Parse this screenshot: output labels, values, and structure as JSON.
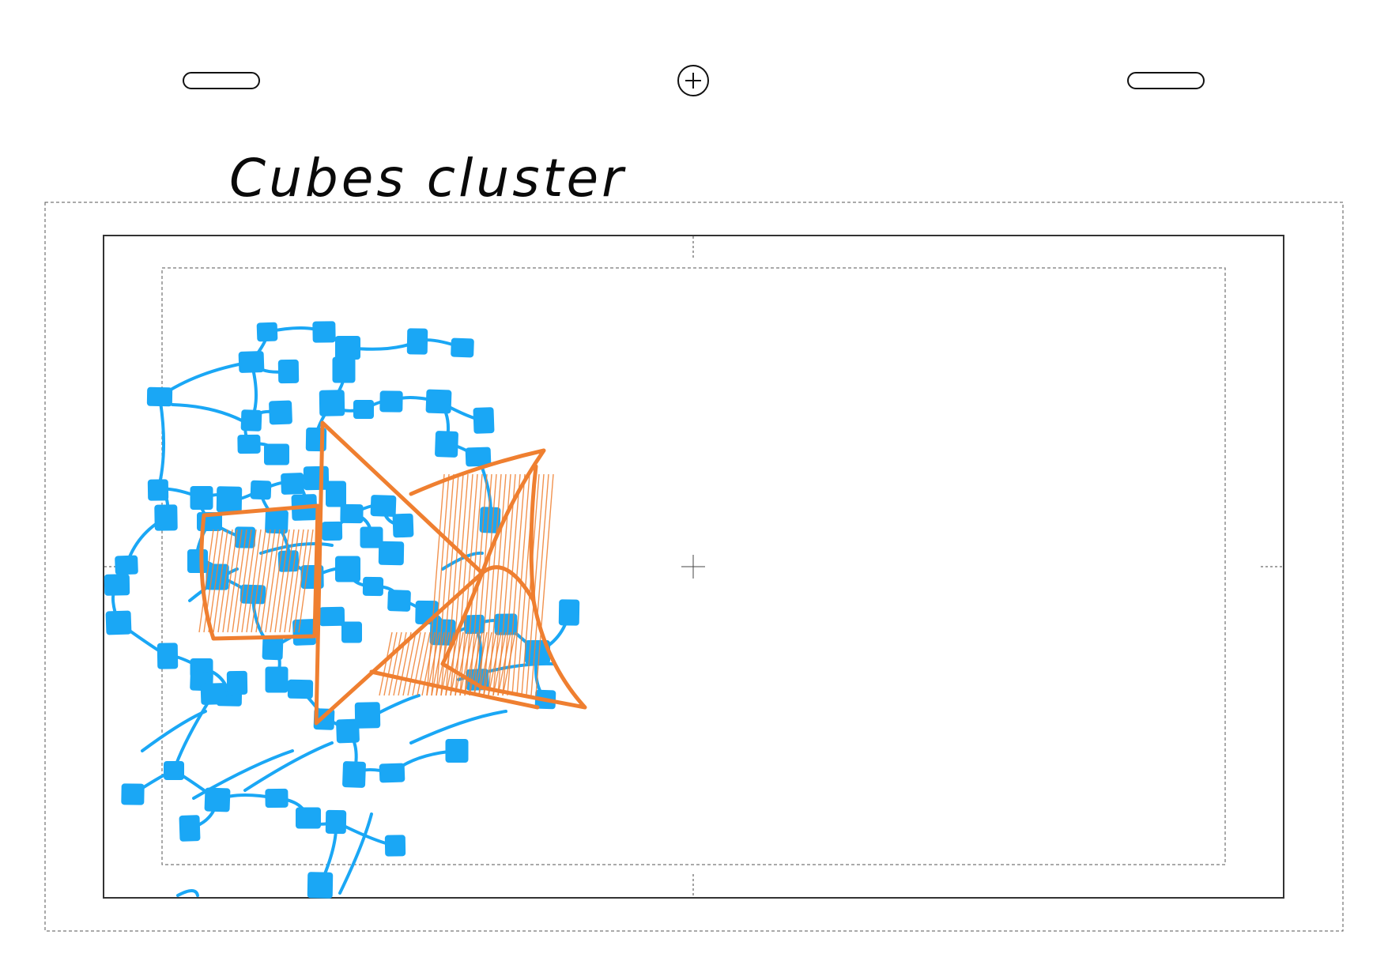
{
  "caption": "Cubes cluster",
  "colors": {
    "cube": "#1aa7f5",
    "shape": "#ef7f30",
    "frame": "#333333",
    "guide": "#555555"
  },
  "icons": {
    "top_left": "pill-handle",
    "top_center": "add-circle-icon",
    "top_right": "pill-handle"
  }
}
